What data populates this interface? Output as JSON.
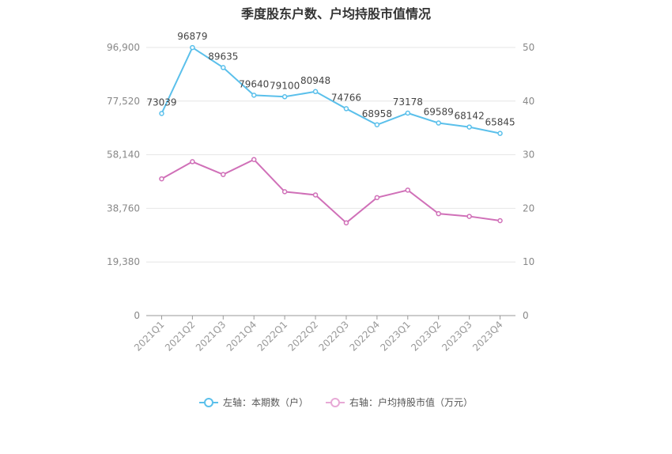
{
  "chart_data": {
    "type": "line",
    "title": "季度股东户数、户均持股市值情况",
    "categories": [
      "2021Q1",
      "2021Q2",
      "2021Q3",
      "2021Q4",
      "2022Q1",
      "2022Q2",
      "2022Q3",
      "2022Q4",
      "2023Q1",
      "2023Q2",
      "2023Q3",
      "2023Q4"
    ],
    "left_axis": {
      "ticks": [
        "0",
        "19,380",
        "38,760",
        "58,140",
        "77,520",
        "96,900"
      ],
      "ylim": [
        0,
        96900
      ]
    },
    "right_axis": {
      "ticks": [
        "0",
        "10",
        "20",
        "30",
        "40",
        "50"
      ],
      "ylim": [
        0,
        50
      ]
    },
    "series": [
      {
        "name": "左轴：本期数（户）",
        "axis": "left",
        "color": "#5bc0eb",
        "values": [
          73039,
          96879,
          89635,
          79640,
          79100,
          80948,
          74766,
          68958,
          73178,
          69589,
          68142,
          65845
        ],
        "labels": [
          "73039",
          "96879",
          "89635",
          "79640",
          "79100",
          "80948",
          "74766",
          "68958",
          "73178",
          "69589",
          "68142",
          "65845"
        ]
      },
      {
        "name": "右轴：户均持股市值（万元）",
        "axis": "right",
        "color": "#d070b8",
        "values": [
          25.5,
          28.7,
          26.3,
          29.1,
          23.1,
          22.5,
          17.3,
          22.0,
          23.4,
          19.0,
          18.5,
          17.7
        ]
      }
    ],
    "grid": true,
    "legend_position": "bottom"
  }
}
